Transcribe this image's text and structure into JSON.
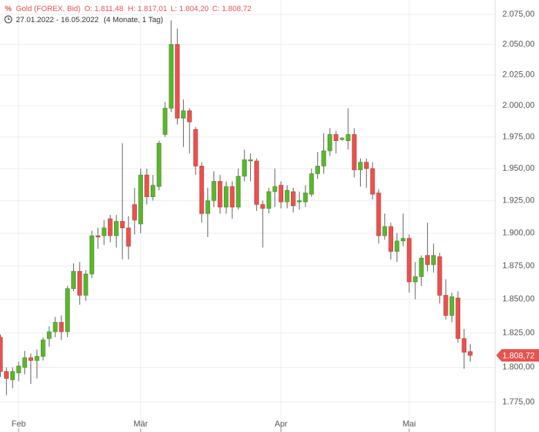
{
  "chart_data": {
    "type": "candlestick",
    "title": "Gold (FOREX, Bid)",
    "header_values": [
      "O: 1.811,48",
      "H: 1.817,01",
      "L: 1.804,20",
      "C: 1.808,72"
    ],
    "date_range": "27.01.2022 - 16.05.2022",
    "period": "(4 Monate, 1 Tag)",
    "log_scale": true,
    "grid": true,
    "up_color": "#5cb531",
    "down_color": "#e8534f",
    "categories": [
      null,
      null,
      null,
      "Feb",
      null,
      null,
      null,
      null,
      null,
      null,
      null,
      null,
      null,
      null,
      null,
      null,
      null,
      null,
      null,
      null,
      null,
      null,
      null,
      "Mär",
      null,
      null,
      null,
      null,
      null,
      null,
      null,
      null,
      null,
      null,
      null,
      null,
      null,
      null,
      null,
      null,
      null,
      null,
      null,
      null,
      null,
      null,
      "Apr",
      null,
      null,
      null,
      null,
      null,
      null,
      null,
      null,
      null,
      null,
      null,
      null,
      null,
      null,
      null,
      null,
      null,
      null,
      null,
      null,
      "Mai",
      null,
      null,
      null,
      null,
      null,
      null,
      null,
      null,
      null,
      null
    ],
    "open": [
      1822,
      1797,
      1791,
      1796,
      1800,
      1807,
      1805,
      1808,
      1821,
      1826,
      1833,
      1826,
      1858,
      1871,
      1853,
      1869,
      1898,
      1898,
      1911,
      1898,
      1909,
      1904,
      1922,
      1907,
      1945,
      1928,
      1936,
      1977,
      1998,
      2050,
      1990,
      1996,
      1981,
      1952,
      1915,
      1925,
      1940,
      1920,
      1936,
      1920,
      1944,
      1956,
      1956,
      1922,
      1919,
      1932,
      1937,
      1924,
      1932,
      1924,
      1924,
      1930,
      1946,
      1952,
      1964,
      1977,
      1973,
      1972,
      1977,
      1949,
      1955,
      1950,
      1931,
      1898,
      1905,
      1886,
      1894,
      1896,
      1863,
      1867,
      1883,
      1876,
      1882,
      1853,
      1838,
      1851,
      1821,
      1811.48
    ],
    "high": [
      1824,
      1800,
      1800,
      1804,
      1812,
      1810,
      1813,
      1822,
      1830,
      1837,
      1838,
      1860,
      1877,
      1878,
      1872,
      1902,
      1904,
      1910,
      1914,
      1914,
      1970,
      1913,
      1935,
      1950,
      1950,
      1945,
      1972,
      2003,
      2070,
      2063,
      2005,
      1998,
      1983,
      1955,
      1935,
      1948,
      1945,
      1940,
      1940,
      1950,
      1965,
      1962,
      1958,
      1925,
      1935,
      1950,
      1940,
      1937,
      1935,
      1932,
      1937,
      1950,
      1963,
      1978,
      1982,
      1980,
      1975,
      1998,
      1982,
      1958,
      1958,
      1955,
      1934,
      1915,
      1908,
      1900,
      1915,
      1899,
      1878,
      1883,
      1908,
      1892,
      1885,
      1865,
      1855,
      1856,
      1828,
      1817.01
    ],
    "low": [
      1793,
      1780,
      1785,
      1790,
      1795,
      1788,
      1792,
      1805,
      1815,
      1822,
      1820,
      1822,
      1856,
      1846,
      1849,
      1866,
      1888,
      1891,
      1893,
      1889,
      1880,
      1880,
      1899,
      1900,
      1922,
      1925,
      1933,
      1975,
      1995,
      1985,
      1967,
      1962,
      1945,
      1908,
      1897,
      1920,
      1915,
      1915,
      1911,
      1918,
      1940,
      1940,
      1917,
      1889,
      1915,
      1920,
      1919,
      1919,
      1916,
      1918,
      1920,
      1928,
      1942,
      1946,
      1960,
      1962,
      1972,
      1965,
      1943,
      1936,
      1935,
      1926,
      1892,
      1895,
      1880,
      1878,
      1890,
      1855,
      1850,
      1860,
      1871,
      1870,
      1847,
      1835,
      1833,
      1818,
      1799,
      1804.2
    ],
    "close": [
      1797,
      1792,
      1797,
      1801,
      1807,
      1805,
      1808,
      1820,
      1826,
      1833,
      1826,
      1858,
      1871,
      1853,
      1869,
      1898,
      1897,
      1904,
      1898,
      1909,
      1904,
      1890,
      1910,
      1945,
      1928,
      1937,
      1970,
      1998,
      2050,
      1990,
      1996,
      1987,
      1952,
      1915,
      1925,
      1940,
      1920,
      1936,
      1920,
      1944,
      1957,
      1957,
      1922,
      1919,
      1932,
      1936,
      1924,
      1933,
      1921,
      1925,
      1931,
      1946,
      1952,
      1964,
      1977,
      1972,
      1974,
      1977,
      1949,
      1955,
      1950,
      1930,
      1898,
      1905,
      1886,
      1894,
      1896,
      1863,
      1867,
      1881,
      1876,
      1883,
      1853,
      1838,
      1852,
      1821,
      1811,
      1808.72
    ],
    "last_price": {
      "value": 1808.72,
      "label": "1.808,72"
    },
    "ylim": [
      1766,
      2087
    ],
    "yticks": [
      {
        "value": 2075,
        "label": "2.075,00"
      },
      {
        "value": 2050,
        "label": "2.050,00"
      },
      {
        "value": 2025,
        "label": "2.025,00"
      },
      {
        "value": 2000,
        "label": "2.000,00"
      },
      {
        "value": 1975,
        "label": "1.975,00"
      },
      {
        "value": 1950,
        "label": "1.950,00"
      },
      {
        "value": 1925,
        "label": "1.925,00"
      },
      {
        "value": 1900,
        "label": "1.900,00"
      },
      {
        "value": 1875,
        "label": "1.875,00"
      },
      {
        "value": 1850,
        "label": "1.850,00"
      },
      {
        "value": 1825,
        "label": "1.825,00"
      },
      {
        "value": 1800,
        "label": "1.800,00"
      },
      {
        "value": 1775,
        "label": "1.775,00"
      }
    ]
  }
}
